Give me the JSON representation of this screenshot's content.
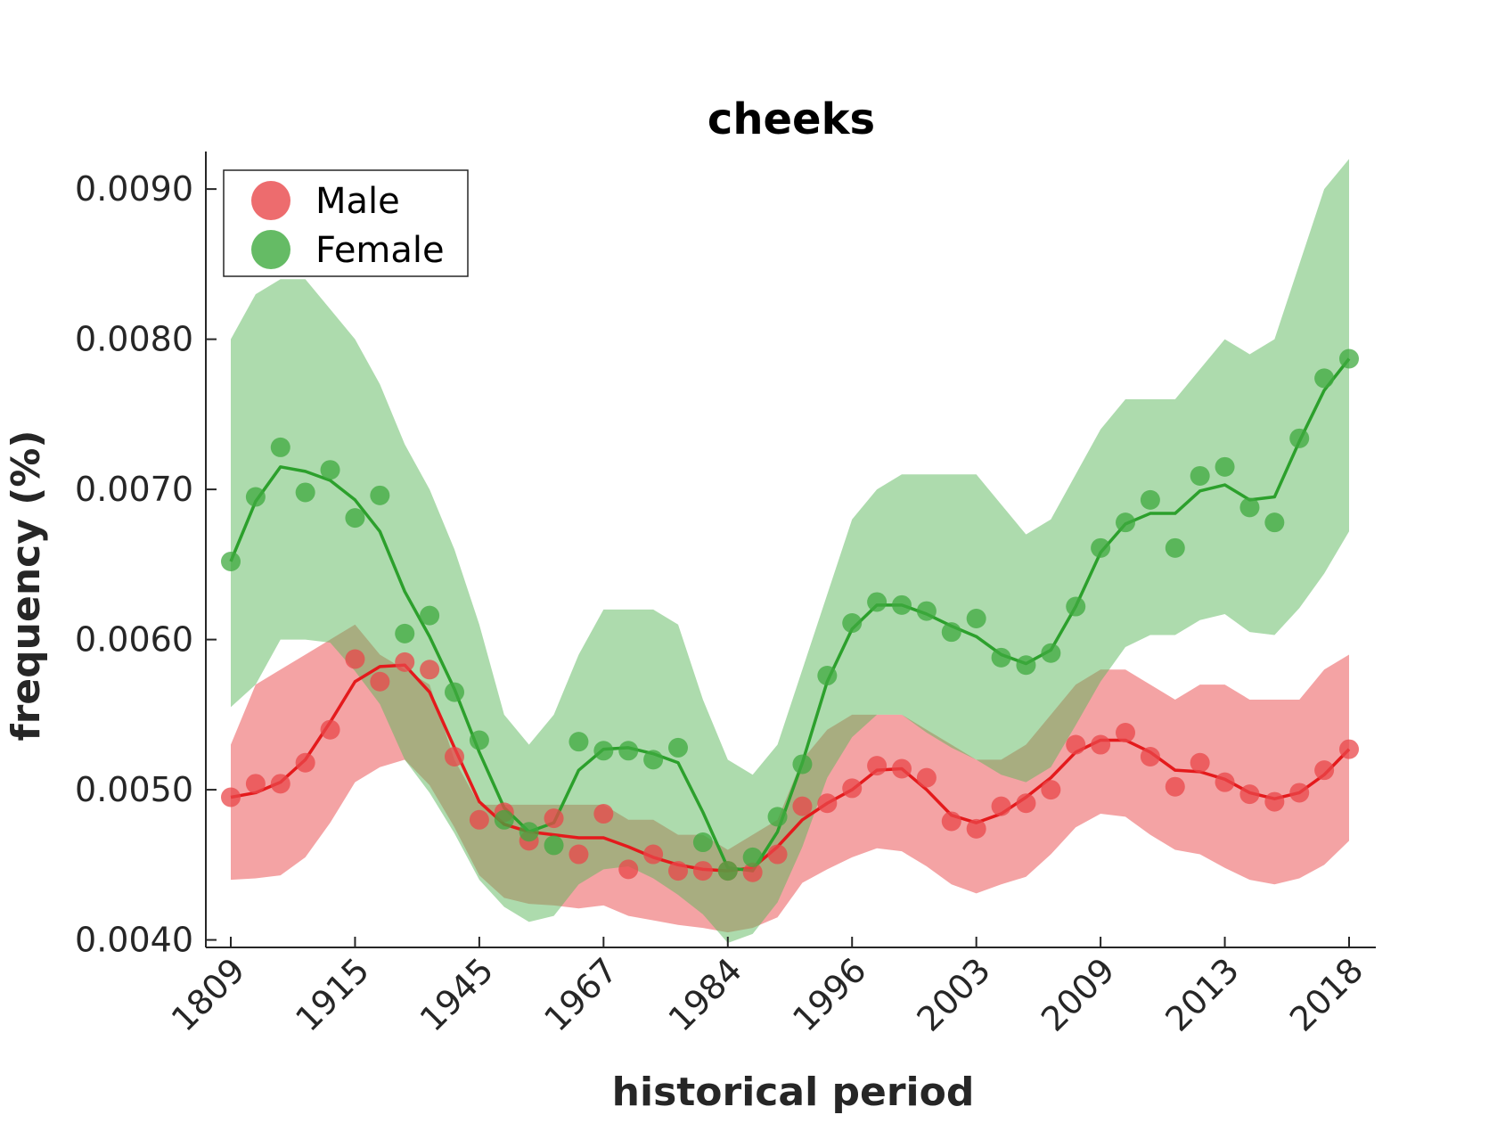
{
  "chart_data": {
    "type": "line",
    "title": "cheeks",
    "xlabel": "historical period",
    "ylabel": "frequency (%)",
    "ylim": [
      0.00395,
      0.00925
    ],
    "y_ticks": [
      "0.0040",
      "0.0050",
      "0.0060",
      "0.0070",
      "0.0080",
      "0.0090"
    ],
    "y_tick_values": [
      0.004,
      0.005,
      0.006,
      0.007,
      0.008,
      0.009
    ],
    "x_ticks": [
      "1809",
      "1915",
      "1945",
      "1967",
      "1984",
      "1996",
      "2003",
      "2009",
      "2013",
      "2018"
    ],
    "x_tick_positions": [
      0,
      5,
      10,
      15,
      20,
      25,
      30,
      35,
      40,
      45
    ],
    "x_positions": [
      0,
      1,
      2,
      3,
      4,
      5,
      6,
      7,
      8,
      9,
      10,
      11,
      12,
      13,
      14,
      15,
      16,
      17,
      18,
      19,
      20,
      21,
      22,
      23,
      24,
      25,
      26,
      27,
      28,
      29,
      30,
      31,
      32,
      33,
      34,
      35,
      36,
      37,
      38,
      39,
      40,
      41,
      42,
      43,
      44,
      45
    ],
    "legend": {
      "position": "top-left",
      "entries": [
        "Male",
        "Female"
      ]
    },
    "grid": false,
    "series": [
      {
        "name": "Male",
        "color": "#e41a1c",
        "points": [
          0.00495,
          0.00504,
          0.00504,
          0.00518,
          0.0054,
          0.00587,
          0.00572,
          0.00585,
          0.0058,
          0.00522,
          0.0048,
          0.00485,
          0.00466,
          0.00481,
          0.00457,
          0.00484,
          0.00447,
          0.00457,
          0.00446,
          0.00446,
          0.00446,
          0.00445,
          0.00457,
          0.00489,
          0.00491,
          0.00501,
          0.00516,
          0.00514,
          0.00508,
          0.00479,
          0.00474,
          0.00489,
          0.00491,
          0.005,
          0.0053,
          0.0053,
          0.00538,
          0.00522,
          0.00502,
          0.00518,
          0.00505,
          0.00497,
          0.00492,
          0.00498,
          0.00513,
          0.00527
        ],
        "line": [
          0.00495,
          0.00498,
          0.00505,
          0.0052,
          0.00545,
          0.00572,
          0.00582,
          0.00583,
          0.00565,
          0.00528,
          0.00492,
          0.00477,
          0.00472,
          0.0047,
          0.00468,
          0.00468,
          0.00462,
          0.00455,
          0.0045,
          0.00447,
          0.00446,
          0.00448,
          0.00462,
          0.0048,
          0.00491,
          0.005,
          0.00513,
          0.00514,
          0.005,
          0.00483,
          0.00478,
          0.00484,
          0.00495,
          0.00508,
          0.00525,
          0.00533,
          0.00533,
          0.00525,
          0.00513,
          0.00512,
          0.00507,
          0.00498,
          0.00494,
          0.00498,
          0.0051,
          0.00527
        ],
        "band_upper": [
          0.0053,
          0.0057,
          0.0058,
          0.0059,
          0.006,
          0.0061,
          0.0059,
          0.0058,
          0.0057,
          0.0052,
          0.0049,
          0.0049,
          0.0049,
          0.0049,
          0.0049,
          0.0049,
          0.0048,
          0.0048,
          0.0047,
          0.0047,
          0.0046,
          0.0047,
          0.0048,
          0.0052,
          0.0054,
          0.0055,
          0.0055,
          0.0055,
          0.0054,
          0.0053,
          0.0052,
          0.0052,
          0.0053,
          0.0055,
          0.0057,
          0.0058,
          0.0058,
          0.0057,
          0.0056,
          0.0057,
          0.0057,
          0.0056,
          0.0056,
          0.0056,
          0.0058,
          0.0059
        ],
        "band_lower": [
          0.0044,
          0.00441,
          0.00443,
          0.00455,
          0.00478,
          0.00505,
          0.00515,
          0.0052,
          0.00503,
          0.00475,
          0.00443,
          0.00428,
          0.00424,
          0.00423,
          0.00421,
          0.00423,
          0.00416,
          0.00413,
          0.0041,
          0.00408,
          0.00405,
          0.00408,
          0.00415,
          0.00438,
          0.00447,
          0.00455,
          0.00461,
          0.00459,
          0.00449,
          0.00437,
          0.00431,
          0.00437,
          0.00442,
          0.00457,
          0.00475,
          0.00484,
          0.00482,
          0.0047,
          0.0046,
          0.00457,
          0.00448,
          0.0044,
          0.00437,
          0.00441,
          0.0045,
          0.00466
        ]
      },
      {
        "name": "Female",
        "color": "#2ca02c",
        "points": [
          0.00652,
          0.00695,
          0.00728,
          0.00698,
          0.00713,
          0.00681,
          0.00696,
          0.00604,
          0.00616,
          0.00565,
          0.00533,
          0.0048,
          0.00472,
          0.00463,
          0.00532,
          0.00526,
          0.00526,
          0.0052,
          0.00528,
          0.00465,
          0.00446,
          0.00455,
          0.00482,
          0.00517,
          0.00576,
          0.00611,
          0.00625,
          0.00623,
          0.00619,
          0.00605,
          0.00614,
          0.00588,
          0.00583,
          0.00591,
          0.00622,
          0.00661,
          0.00678,
          0.00693,
          0.00661,
          0.00709,
          0.00715,
          0.00688,
          0.00678,
          0.00734,
          0.00774,
          0.00787
        ],
        "line": [
          0.00652,
          0.00692,
          0.00715,
          0.00712,
          0.00706,
          0.00693,
          0.00672,
          0.00632,
          0.00602,
          0.00567,
          0.00525,
          0.00488,
          0.00472,
          0.00478,
          0.00513,
          0.00527,
          0.00528,
          0.00524,
          0.00518,
          0.00485,
          0.00448,
          0.00446,
          0.00472,
          0.00518,
          0.00572,
          0.00607,
          0.00623,
          0.00623,
          0.00617,
          0.00609,
          0.00602,
          0.0059,
          0.00584,
          0.00593,
          0.00622,
          0.00658,
          0.00677,
          0.00684,
          0.00684,
          0.00699,
          0.00703,
          0.00693,
          0.00695,
          0.00732,
          0.00766,
          0.00787
        ],
        "band_upper": [
          0.008,
          0.0083,
          0.0084,
          0.0084,
          0.0082,
          0.008,
          0.0077,
          0.0073,
          0.007,
          0.0066,
          0.0061,
          0.0055,
          0.0053,
          0.0055,
          0.0059,
          0.0062,
          0.0062,
          0.0062,
          0.0061,
          0.0056,
          0.0052,
          0.0051,
          0.0053,
          0.0058,
          0.0063,
          0.0068,
          0.007,
          0.0071,
          0.0071,
          0.0071,
          0.0071,
          0.0069,
          0.0067,
          0.0068,
          0.0071,
          0.0074,
          0.0076,
          0.0076,
          0.0076,
          0.0078,
          0.008,
          0.0079,
          0.008,
          0.0085,
          0.009,
          0.0092
        ],
        "band_lower": [
          0.00555,
          0.0057,
          0.006,
          0.006,
          0.00598,
          0.00579,
          0.00557,
          0.0052,
          0.00498,
          0.00471,
          0.0044,
          0.00422,
          0.00412,
          0.00416,
          0.00437,
          0.00447,
          0.00449,
          0.00441,
          0.0043,
          0.00417,
          0.00398,
          0.00404,
          0.00425,
          0.00462,
          0.00508,
          0.00535,
          0.0055,
          0.0055,
          0.00538,
          0.00528,
          0.0052,
          0.0051,
          0.00505,
          0.00515,
          0.00543,
          0.00572,
          0.00595,
          0.00603,
          0.00603,
          0.00613,
          0.00617,
          0.00605,
          0.00603,
          0.00621,
          0.00644,
          0.00672
        ]
      }
    ]
  }
}
